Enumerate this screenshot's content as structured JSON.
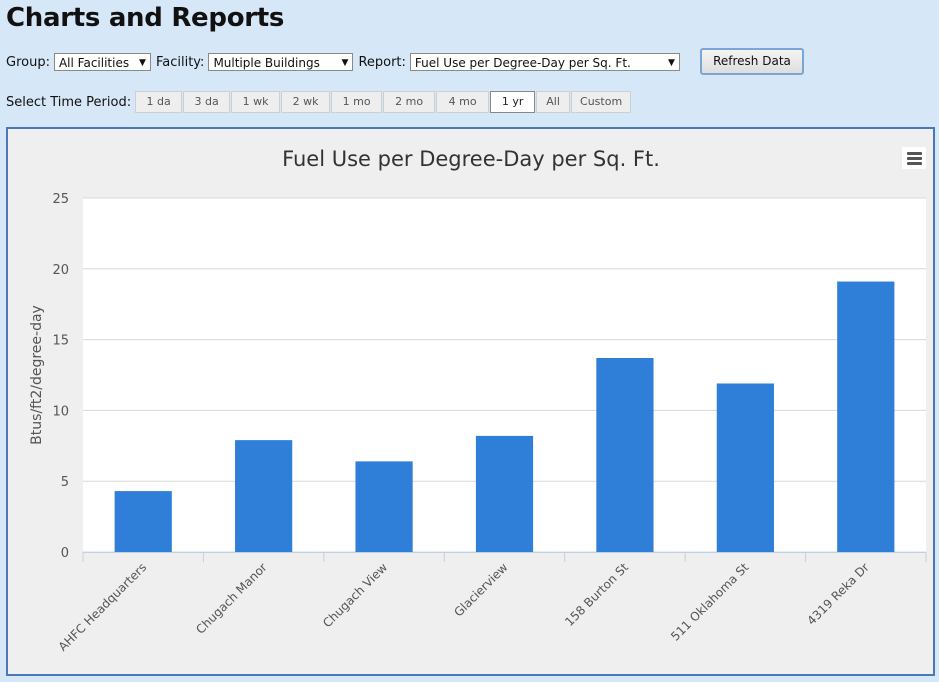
{
  "page": {
    "title": "Charts and Reports"
  },
  "controls": {
    "group_label": "Group:",
    "group_value": "All Facilities",
    "facility_label": "Facility:",
    "facility_value": "Multiple Buildings",
    "report_label": "Report:",
    "report_value": "Fuel Use per Degree-Day per Sq. Ft.",
    "refresh_label": "Refresh Data"
  },
  "time_period": {
    "label": "Select Time Period:",
    "options": [
      "1 da",
      "3 da",
      "1 wk",
      "2 wk",
      "1 mo",
      "2 mo",
      "4 mo",
      "1 yr",
      "All",
      "Custom"
    ],
    "selected": "1 yr"
  },
  "colors": {
    "bar": "#2f7ed8",
    "panel_border": "#4a78b8",
    "background": "#d6e7f7"
  },
  "icons": {
    "chart_menu": "hamburger-menu-icon",
    "select_arrow": "triangle-down-icon"
  },
  "chart_data": {
    "type": "bar",
    "title": "Fuel Use per Degree-Day per Sq. Ft.",
    "xlabel": "",
    "ylabel": "Btus/ft2/degree-day",
    "categories": [
      "AHFC Headquarters",
      "Chugach Manor",
      "Chugach View",
      "Glacierview",
      "158 Burton St",
      "511 Oklahoma St",
      "4319 Reka Dr"
    ],
    "values": [
      4.3,
      7.9,
      6.4,
      8.2,
      13.7,
      11.9,
      19.1
    ],
    "ylim": [
      0,
      25
    ],
    "yticks": [
      "0",
      "5",
      "10",
      "15",
      "20",
      "25"
    ],
    "grid": true,
    "legend": "none"
  }
}
